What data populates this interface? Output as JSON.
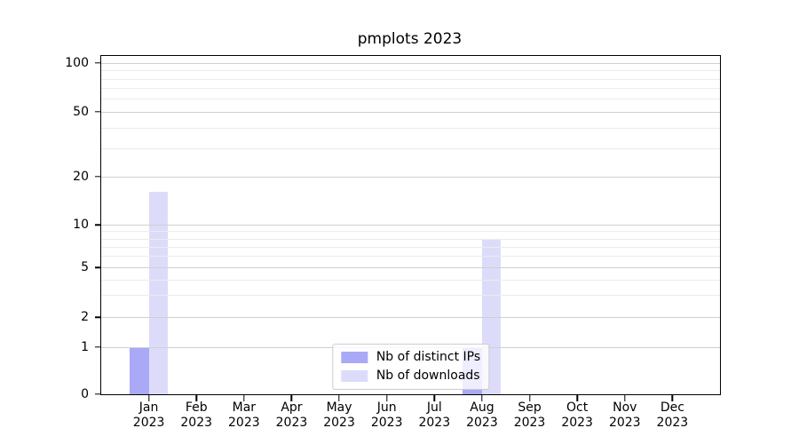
{
  "chart_data": {
    "type": "bar",
    "title": "pmplots 2023",
    "months": [
      "Jan",
      "Feb",
      "Mar",
      "Apr",
      "May",
      "Jun",
      "Jul",
      "Aug",
      "Sep",
      "Oct",
      "Nov",
      "Dec"
    ],
    "year": "2023",
    "series": [
      {
        "name": "Nb of distinct IPs",
        "color": "#a9a9f7",
        "values": [
          1,
          0,
          0,
          0,
          0,
          0,
          0,
          1,
          0,
          0,
          0,
          0
        ]
      },
      {
        "name": "Nb of downloads",
        "color": "#dcdcfa",
        "values": [
          16,
          0,
          0,
          0,
          0,
          0,
          0,
          8,
          0,
          0,
          0,
          0
        ]
      }
    ],
    "yticks": [
      0,
      1,
      2,
      5,
      10,
      20,
      50,
      100
    ],
    "minor_yticks": [
      3,
      4,
      6,
      7,
      8,
      9,
      30,
      40,
      60,
      70,
      80,
      90
    ],
    "yscale": "asinh (logarithmic above 1, linear 0-1)",
    "ylim": [
      0,
      110
    ],
    "xlabel": "",
    "ylabel": "",
    "grid": "horizontal major and minor gridlines, drawn above bars",
    "legend_position": "lower center"
  }
}
